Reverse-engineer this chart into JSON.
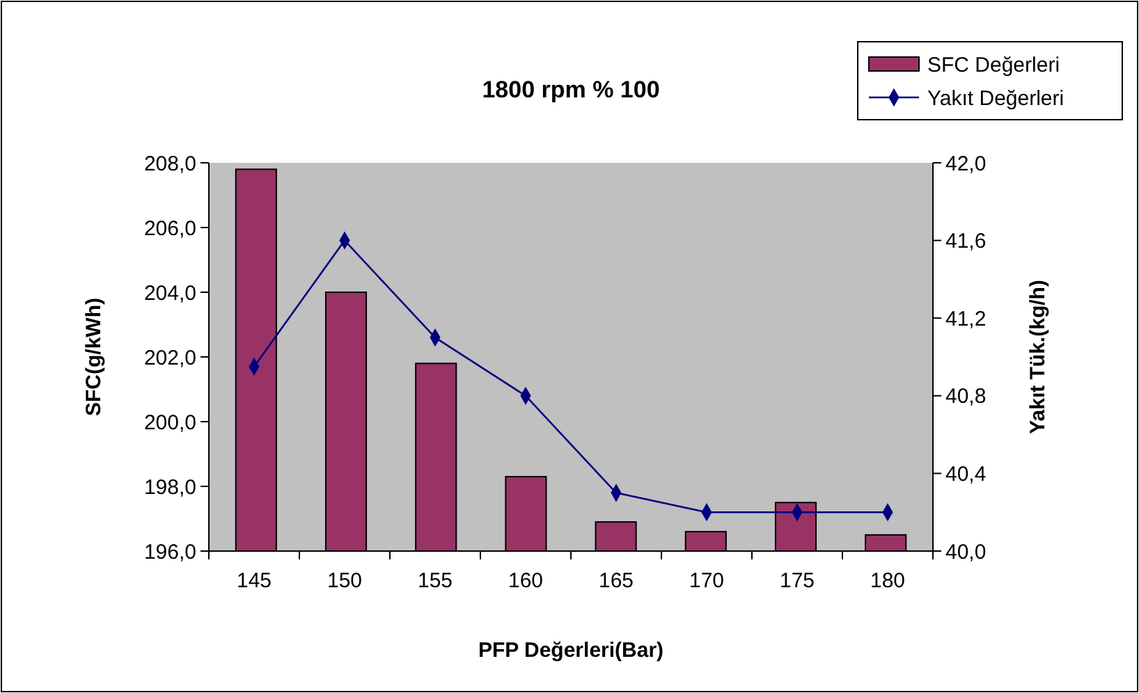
{
  "chart_data": {
    "type": "bar",
    "title": "1800 rpm % 100",
    "xlabel": "PFP Değerleri(Bar)",
    "ylabel": "SFC(g/kWh)",
    "y2label": "Yakıt Tük.(kg/h)",
    "categories": [
      "145",
      "150",
      "155",
      "160",
      "165",
      "170",
      "175",
      "180"
    ],
    "series": [
      {
        "name": "SFC Değerleri",
        "color": "#993366",
        "values": [
          207.8,
          204.0,
          201.8,
          198.3,
          196.9,
          196.6,
          197.5,
          196.5
        ]
      },
      {
        "name": "Yakıt Değerleri",
        "type": "line",
        "axis": "y2",
        "color": "#000080",
        "marker": "diamond",
        "values": [
          40.95,
          41.6,
          41.1,
          40.8,
          40.3,
          40.2,
          40.2,
          40.2
        ]
      }
    ],
    "ylim": [
      196,
      208
    ],
    "yticks": [
      {
        "value": 196,
        "label": "196,0"
      },
      {
        "value": 198,
        "label": "198,0"
      },
      {
        "value": 200,
        "label": "200,0"
      },
      {
        "value": 202,
        "label": "202,0"
      },
      {
        "value": 204,
        "label": "204,0"
      },
      {
        "value": 206,
        "label": "206,0"
      },
      {
        "value": 208,
        "label": "208,0"
      }
    ],
    "y2lim": [
      40,
      42
    ],
    "y2ticks": [
      {
        "value": 40,
        "label": "40,0"
      },
      {
        "value": 40.4,
        "label": "40,4"
      },
      {
        "value": 40.8,
        "label": "40,8"
      },
      {
        "value": 41.2,
        "label": "41,2"
      },
      {
        "value": 41.6,
        "label": "41,6"
      },
      {
        "value": 42,
        "label": "42,0"
      }
    ],
    "grid": false,
    "legend": "top right"
  }
}
